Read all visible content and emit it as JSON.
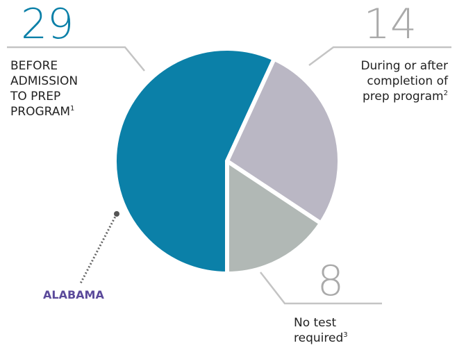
{
  "chart_data": {
    "type": "pie",
    "categories": [
      [
        "BEFORE",
        "ADMISSION",
        "TO PREP",
        "PROGRAM"
      ],
      [
        "During or after",
        "completion of",
        "prep program"
      ],
      [
        "No test",
        "required"
      ]
    ],
    "footnotes": [
      "1",
      "2",
      "3"
    ],
    "values": [
      29,
      14,
      8
    ],
    "colors": [
      "#0b80a8",
      "#bab7c4",
      "#b1b8b5"
    ],
    "value_colors": [
      "#0b80a8",
      "#aaaaaa",
      "#aaaaaa"
    ],
    "annotation": "ALABAMA"
  }
}
